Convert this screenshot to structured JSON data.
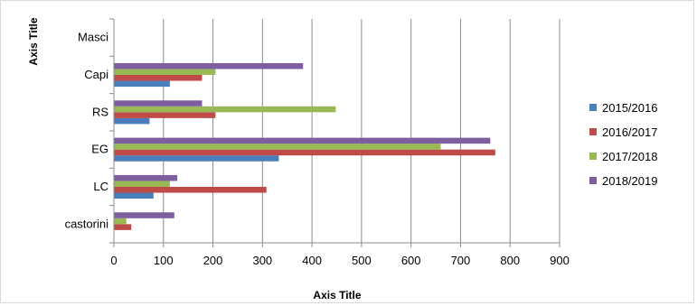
{
  "chart_data": {
    "type": "bar",
    "orientation": "horizontal",
    "categories": [
      "castorini",
      "LC",
      "EG",
      "RS",
      "Capi",
      "Masci"
    ],
    "series": [
      {
        "name": "2015/2016",
        "color": "#4a7ebb",
        "values": [
          0,
          80,
          333,
          72,
          113,
          0
        ]
      },
      {
        "name": "2016/2017",
        "color": "#be4b48",
        "values": [
          35,
          308,
          770,
          205,
          178,
          0
        ]
      },
      {
        "name": "2017/2018",
        "color": "#98b954",
        "values": [
          25,
          113,
          660,
          448,
          205,
          0
        ]
      },
      {
        "name": "2018/2019",
        "color": "#7d5fa0",
        "values": [
          122,
          128,
          760,
          178,
          382,
          0
        ]
      }
    ],
    "xlabel": "Axis Title",
    "ylabel": "Axis Title",
    "xlim": [
      0,
      900
    ],
    "xticks": [
      "0",
      "100",
      "200",
      "300",
      "400",
      "500",
      "600",
      "700",
      "800",
      "900"
    ],
    "grid": "vertical gridlines",
    "legend": "right"
  }
}
